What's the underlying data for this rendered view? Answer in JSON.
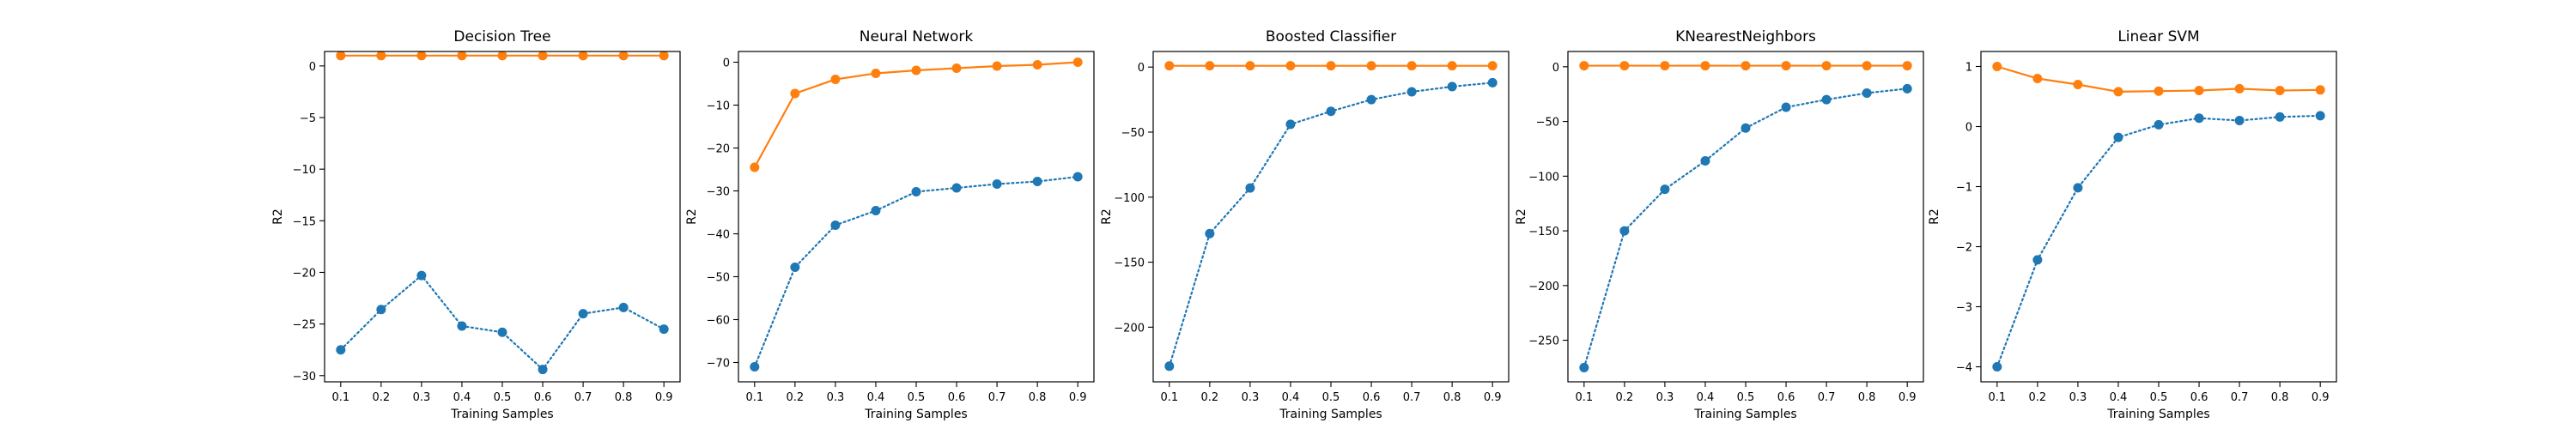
{
  "chart_data": [
    {
      "type": "line",
      "title": "Decision Tree",
      "xlabel": "Training Samples",
      "ylabel": "R2",
      "x": [
        0.1,
        0.2,
        0.3,
        0.4,
        0.5,
        0.6,
        0.7,
        0.8,
        0.9
      ],
      "xticks": [
        "0.1",
        "0.2",
        "0.3",
        "0.4",
        "0.5",
        "0.6",
        "0.7",
        "0.8",
        "0.9"
      ],
      "xlim": [
        0.06,
        0.94
      ],
      "ylim": [
        -30.6,
        1.4
      ],
      "yticks": [
        0,
        -5,
        -10,
        -15,
        -20,
        -25,
        -30
      ],
      "ytick_labels": [
        "0",
        "−5",
        "−10",
        "−15",
        "−20",
        "−25",
        "−30"
      ],
      "grid": false,
      "series": [
        {
          "color": "#ff7f0e",
          "style": "solid",
          "values": [
            1.0,
            1.0,
            1.0,
            1.0,
            1.0,
            1.0,
            1.0,
            1.0,
            1.0
          ]
        },
        {
          "color": "#1f77b4",
          "style": "dotted",
          "values": [
            -27.5,
            -23.6,
            -20.3,
            -25.2,
            -25.8,
            -29.4,
            -24.0,
            -23.4,
            -25.5
          ]
        }
      ]
    },
    {
      "type": "line",
      "title": "Neural Network",
      "xlabel": "Training Samples",
      "ylabel": "R2",
      "x": [
        0.1,
        0.2,
        0.3,
        0.4,
        0.5,
        0.6,
        0.7,
        0.8,
        0.9
      ],
      "xticks": [
        "0.1",
        "0.2",
        "0.3",
        "0.4",
        "0.5",
        "0.6",
        "0.7",
        "0.8",
        "0.9"
      ],
      "xlim": [
        0.06,
        0.94
      ],
      "ylim": [
        -74.5,
        2.5
      ],
      "yticks": [
        0,
        -10,
        -20,
        -30,
        -40,
        -50,
        -60,
        -70
      ],
      "ytick_labels": [
        "0",
        "−10",
        "−20",
        "−30",
        "−40",
        "−50",
        "−60",
        "−70"
      ],
      "grid": false,
      "series": [
        {
          "color": "#ff7f0e",
          "style": "solid",
          "values": [
            -24.5,
            -7.3,
            -4.0,
            -2.6,
            -1.9,
            -1.4,
            -0.9,
            -0.6,
            0.0
          ]
        },
        {
          "color": "#1f77b4",
          "style": "dotted",
          "values": [
            -71.0,
            -47.8,
            -38.0,
            -34.6,
            -30.2,
            -29.3,
            -28.4,
            -27.8,
            -26.7
          ]
        }
      ]
    },
    {
      "type": "line",
      "title": "Boosted Classifier",
      "xlabel": "Training Samples",
      "ylabel": "R2",
      "x": [
        0.1,
        0.2,
        0.3,
        0.4,
        0.5,
        0.6,
        0.7,
        0.8,
        0.9
      ],
      "xticks": [
        "0.1",
        "0.2",
        "0.3",
        "0.4",
        "0.5",
        "0.6",
        "0.7",
        "0.8",
        "0.9"
      ],
      "xlim": [
        0.06,
        0.94
      ],
      "ylim": [
        -242,
        12
      ],
      "yticks": [
        0,
        -50,
        -100,
        -150,
        -200
      ],
      "ytick_labels": [
        "0",
        "−50",
        "−100",
        "−150",
        "−200"
      ],
      "grid": false,
      "series": [
        {
          "color": "#ff7f0e",
          "style": "solid",
          "values": [
            1.0,
            1.0,
            1.0,
            1.0,
            1.0,
            1.0,
            1.0,
            1.0,
            1.0
          ]
        },
        {
          "color": "#1f77b4",
          "style": "dotted",
          "values": [
            -230,
            -128,
            -93,
            -44,
            -34,
            -25,
            -19,
            -15,
            -12
          ]
        }
      ]
    },
    {
      "type": "line",
      "title": "KNearestNeighbors",
      "xlabel": "Training Samples",
      "ylabel": "R2",
      "x": [
        0.1,
        0.2,
        0.3,
        0.4,
        0.5,
        0.6,
        0.7,
        0.8,
        0.9
      ],
      "xticks": [
        "0.1",
        "0.2",
        "0.3",
        "0.4",
        "0.5",
        "0.6",
        "0.7",
        "0.8",
        "0.9"
      ],
      "xlim": [
        0.06,
        0.94
      ],
      "ylim": [
        -288,
        14
      ],
      "yticks": [
        0,
        -50,
        -100,
        -150,
        -200,
        -250
      ],
      "ytick_labels": [
        "0",
        "−50",
        "−100",
        "−150",
        "−200",
        "−250"
      ],
      "grid": false,
      "series": [
        {
          "color": "#ff7f0e",
          "style": "solid",
          "values": [
            1.0,
            1.0,
            1.0,
            1.0,
            1.0,
            1.0,
            1.0,
            1.0,
            1.0
          ]
        },
        {
          "color": "#1f77b4",
          "style": "dotted",
          "values": [
            -275,
            -150,
            -112,
            -86,
            -56,
            -37,
            -30,
            -24,
            -20
          ]
        }
      ]
    },
    {
      "type": "line",
      "title": "Linear SVM",
      "xlabel": "Training Samples",
      "ylabel": "R2",
      "x": [
        0.1,
        0.2,
        0.3,
        0.4,
        0.5,
        0.6,
        0.7,
        0.8,
        0.9
      ],
      "xticks": [
        "0.1",
        "0.2",
        "0.3",
        "0.4",
        "0.5",
        "0.6",
        "0.7",
        "0.8",
        "0.9"
      ],
      "xlim": [
        0.06,
        0.94
      ],
      "ylim": [
        -4.25,
        1.25
      ],
      "yticks": [
        1,
        0,
        -1,
        -2,
        -3,
        -4
      ],
      "ytick_labels": [
        "1",
        "0",
        "−1",
        "−2",
        "−3",
        "−4"
      ],
      "grid": false,
      "series": [
        {
          "color": "#ff7f0e",
          "style": "solid",
          "values": [
            1.0,
            0.8,
            0.7,
            0.58,
            0.59,
            0.6,
            0.63,
            0.6,
            0.61
          ]
        },
        {
          "color": "#1f77b4",
          "style": "dotted",
          "values": [
            -4.0,
            -2.22,
            -1.02,
            -0.18,
            0.03,
            0.14,
            0.1,
            0.16,
            0.18
          ]
        }
      ]
    }
  ]
}
